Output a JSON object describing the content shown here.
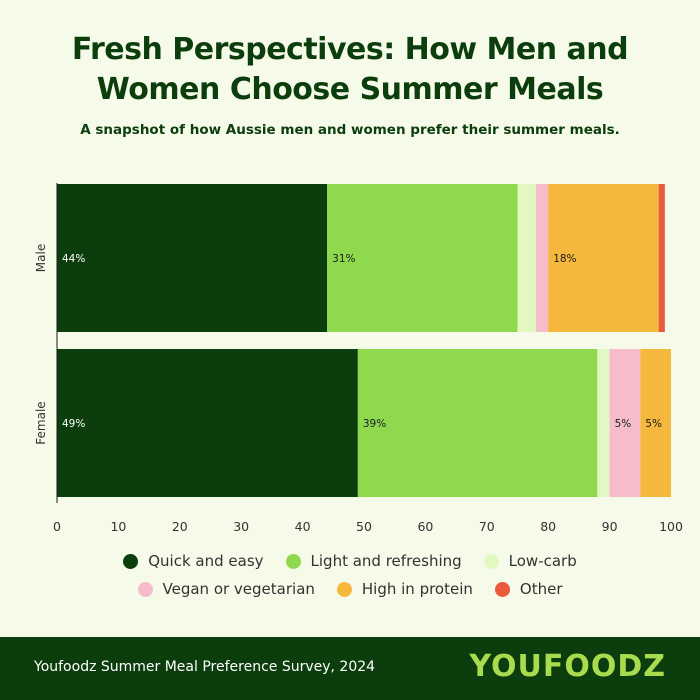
{
  "title_line1": "Fresh Perspectives: How Men and",
  "title_line2": "Women Choose Summer Meals",
  "subtitle": "A snapshot of how Aussie men and women prefer their summer meals.",
  "footer": {
    "source": "Youfoodz Summer Meal Preference Survey, 2024",
    "brand": "YOUFOODZ"
  },
  "chart_data": {
    "type": "bar",
    "orientation": "horizontal",
    "stacked": true,
    "title": "Fresh Perspectives: How Men and Women Choose Summer Meals",
    "categories": [
      "Male",
      "Female"
    ],
    "xlim": [
      0,
      100
    ],
    "xticks": [
      0,
      10,
      20,
      30,
      40,
      50,
      60,
      70,
      80,
      90,
      100
    ],
    "legend_position": "bottom",
    "series": [
      {
        "name": "Quick and easy",
        "color": "#0c3d0c",
        "label_color": "#ffffff",
        "values": [
          44,
          49
        ],
        "labels": [
          "44%",
          "49%"
        ]
      },
      {
        "name": "Light and refreshing",
        "color": "#8fd94f",
        "label_color": "#1a1a1a",
        "values": [
          31,
          39
        ],
        "labels": [
          "31%",
          "39%"
        ]
      },
      {
        "name": "Low-carb",
        "color": "#e2f8c0",
        "label_color": "#1a1a1a",
        "values": [
          3,
          2
        ],
        "labels": [
          "",
          ""
        ]
      },
      {
        "name": "Vegan or vegetarian",
        "color": "#f7bccb",
        "label_color": "#1a1a1a",
        "values": [
          2,
          5
        ],
        "labels": [
          "",
          "5%"
        ]
      },
      {
        "name": "High in protein",
        "color": "#f5b83d",
        "label_color": "#1a1a1a",
        "values": [
          18,
          5
        ],
        "labels": [
          "18%",
          "5%"
        ]
      },
      {
        "name": "Other",
        "color": "#ec5a3e",
        "label_color": "#1a1a1a",
        "values": [
          1,
          0
        ],
        "labels": [
          "",
          ""
        ]
      }
    ]
  }
}
